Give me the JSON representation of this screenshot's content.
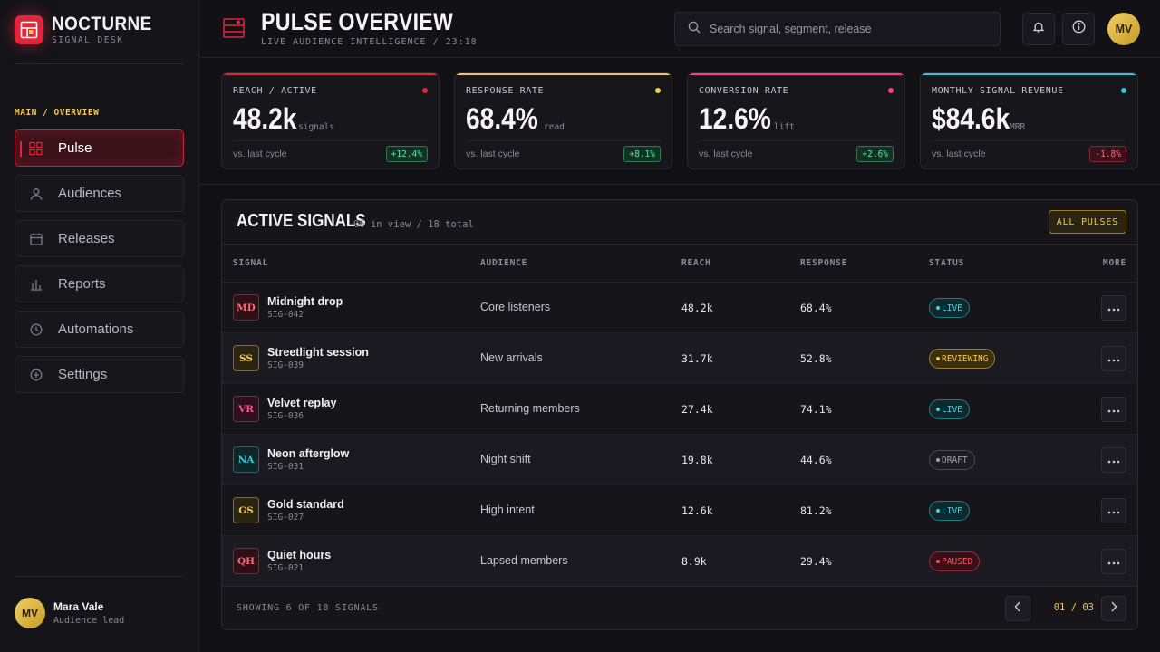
{
  "brand": {
    "name": "NOCTURNE",
    "subtitle": "SIGNAL DESK"
  },
  "nav": {
    "section_label": "MAIN / OVERVIEW",
    "items": [
      {
        "label": "Pulse",
        "icon": "grid-icon",
        "active": true
      },
      {
        "label": "Audiences",
        "icon": "user-icon"
      },
      {
        "label": "Releases",
        "icon": "calendar-icon"
      },
      {
        "label": "Reports",
        "icon": "bar-chart-icon"
      },
      {
        "label": "Automations",
        "icon": "clock-icon"
      },
      {
        "label": "Settings",
        "icon": "plus-circle-icon"
      }
    ]
  },
  "user": {
    "initials": "MV",
    "name": "Mara Vale",
    "role": "Audience lead"
  },
  "header": {
    "title": "PULSE OVERVIEW",
    "subtitle": "LIVE AUDIENCE INTELLIGENCE / 23:18",
    "search_placeholder": "Search signal, segment, release",
    "avatar_initials": "MV"
  },
  "kpis": [
    {
      "label": "REACH / ACTIVE",
      "value": "48.2k",
      "unit": "signals",
      "compare": "vs. last cycle",
      "delta": "+12.4%",
      "trend": "up",
      "accent": "#e0263b"
    },
    {
      "label": "RESPONSE RATE",
      "value": "68.4%",
      "unit": "read",
      "compare": "vs. last cycle",
      "delta": "+8.1%",
      "trend": "up",
      "accent": "#f2c94c"
    },
    {
      "label": "CONVERSION RATE",
      "value": "12.6%",
      "unit": "lift",
      "compare": "vs. last cycle",
      "delta": "+2.6%",
      "trend": "up",
      "accent": "#ff3d8b"
    },
    {
      "label": "MONTHLY SIGNAL REVENUE",
      "value": "$84.6k",
      "unit": "MRR",
      "compare": "vs. last cycle",
      "delta": "-1.8%",
      "trend": "down",
      "accent": "#2fc7d6"
    }
  ],
  "signals_panel": {
    "title": "ACTIVE SIGNALS",
    "meta": "06 in view / 18 total",
    "all_button": "ALL PULSES",
    "columns": [
      "SIGNAL",
      "AUDIENCE",
      "REACH",
      "RESPONSE",
      "STATUS",
      "MORE"
    ],
    "rows": [
      {
        "initials": "MD",
        "name": "Midnight drop",
        "id": "SIG-042",
        "audience": "Core listeners",
        "reach": "48.2k",
        "response": "68.4%",
        "status": "LIVE",
        "tone": "red"
      },
      {
        "initials": "SS",
        "name": "Streetlight session",
        "id": "SIG-039",
        "audience": "New arrivals",
        "reach": "31.7k",
        "response": "52.8%",
        "status": "REVIEWING",
        "tone": "gold"
      },
      {
        "initials": "VR",
        "name": "Velvet replay",
        "id": "SIG-036",
        "audience": "Returning members",
        "reach": "27.4k",
        "response": "74.1%",
        "status": "LIVE",
        "tone": "pink"
      },
      {
        "initials": "NA",
        "name": "Neon afterglow",
        "id": "SIG-031",
        "audience": "Night shift",
        "reach": "19.8k",
        "response": "44.6%",
        "status": "DRAFT",
        "tone": "cyan"
      },
      {
        "initials": "GS",
        "name": "Gold standard",
        "id": "SIG-027",
        "audience": "High intent",
        "reach": "12.6k",
        "response": "81.2%",
        "status": "LIVE",
        "tone": "gold"
      },
      {
        "initials": "QH",
        "name": "Quiet hours",
        "id": "SIG-021",
        "audience": "Lapsed members",
        "reach": "8.9k",
        "response": "29.4%",
        "status": "PAUSED",
        "tone": "red"
      }
    ],
    "footer": "SHOWING 6 OF 18 SIGNALS",
    "pagination": "01 / 03"
  }
}
